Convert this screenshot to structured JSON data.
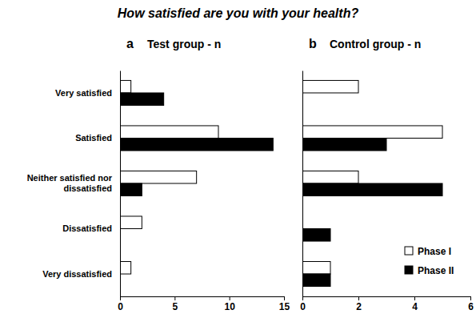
{
  "chart_data": [
    {
      "type": "bar",
      "orientation": "horizontal",
      "title": "How satisfied are you with your health?",
      "panel_label": "a",
      "subtitle": "Test group - n",
      "categories": [
        "Very satisfied",
        "Satisfied",
        "Neither satisfied nor dissatisfied",
        "Dissatisfied",
        "Very dissatisfied"
      ],
      "series": [
        {
          "name": "Phase I",
          "color": "#ffffff",
          "values": [
            1,
            9,
            7,
            2,
            1
          ]
        },
        {
          "name": "Phase II",
          "color": "#000000",
          "values": [
            4,
            14,
            2,
            0,
            0
          ]
        }
      ],
      "xlim": [
        0,
        15
      ],
      "xticks": [
        0,
        5,
        10,
        15
      ]
    },
    {
      "type": "bar",
      "orientation": "horizontal",
      "panel_label": "b",
      "subtitle": "Control group - n",
      "categories": [
        "Very satisfied",
        "Satisfied",
        "Neither satisfied nor dissatisfied",
        "Dissatisfied",
        "Very dissatisfied"
      ],
      "series": [
        {
          "name": "Phase I",
          "color": "#ffffff",
          "values": [
            2,
            5,
            2,
            0,
            1
          ]
        },
        {
          "name": "Phase II",
          "color": "#000000",
          "values": [
            0,
            3,
            5,
            1,
            1
          ]
        }
      ],
      "xlim": [
        0,
        6
      ],
      "xticks": [
        0,
        2,
        4,
        6
      ],
      "legend": "lower right",
      "tick_labels": "x"
    }
  ]
}
